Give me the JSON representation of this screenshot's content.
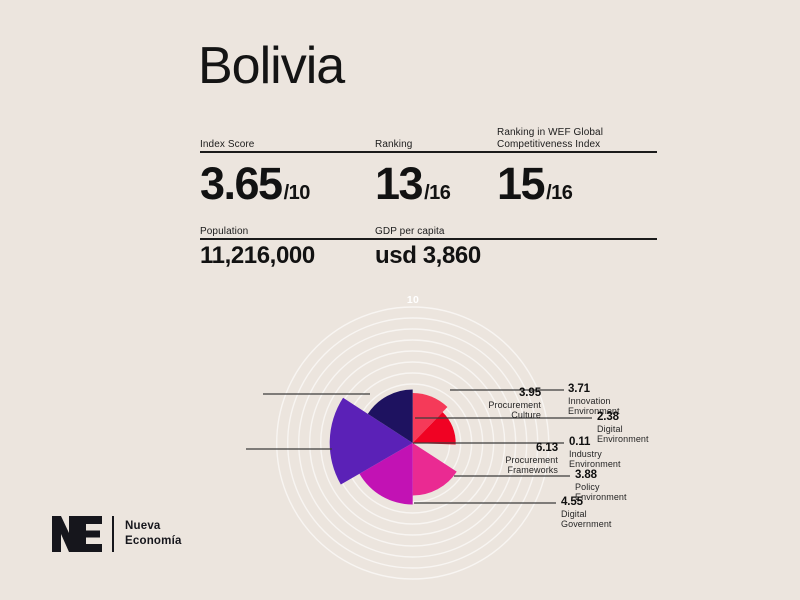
{
  "page": {
    "background": "#ECE5DE",
    "title": "Bolivia"
  },
  "stats": {
    "row1": [
      {
        "label": "Index Score",
        "value": "3.65",
        "suffix": "/10"
      },
      {
        "label": "Ranking",
        "value": "13",
        "suffix": "/16"
      },
      {
        "label": "Ranking in WEF Global Competitiveness Index",
        "value": "15",
        "suffix": "/16"
      }
    ],
    "row2": [
      {
        "label": "Population",
        "value": "11,216,000"
      },
      {
        "label": "GDP per capita",
        "value": "usd 3,860"
      }
    ]
  },
  "chart_data": {
    "type": "polar-area",
    "title": "",
    "scale_max_label": "10",
    "rlim": [
      0,
      10
    ],
    "grid": true,
    "grid_color": "#FFFFFF",
    "leader_line_color": "#3c3c3c",
    "series": [
      {
        "name": "Innovation Environment",
        "label_lines": [
          "Innovation",
          "Environment"
        ],
        "value": 3.71,
        "value_label": "3.71",
        "color": "#F53A59"
      },
      {
        "name": "Digital Environment",
        "label_lines": [
          "Digital",
          "Environment"
        ],
        "value": 2.38,
        "value_label": "2.38",
        "color": "#F00223"
      },
      {
        "name": "Industry Environment",
        "label_lines": [
          "Industry",
          "Environment"
        ],
        "value": 0.11,
        "value_label": "0.11",
        "color": "#F00223"
      },
      {
        "name": "Policy Environment",
        "label_lines": [
          "Policy",
          "Environment"
        ],
        "value": 3.88,
        "value_label": "3.88",
        "color": "#EA2A92"
      },
      {
        "name": "Digital Government",
        "label_lines": [
          "Digital",
          "Government"
        ],
        "value": 4.55,
        "value_label": "4.55",
        "color": "#C212B4"
      },
      {
        "name": "Procurement Frameworks",
        "label_lines": [
          "Procurement",
          "Frameworks"
        ],
        "value": 6.13,
        "value_label": "6.13",
        "color": "#5B21B7"
      },
      {
        "name": "Procurement Culture",
        "label_lines": [
          "Procurement",
          "Culture"
        ],
        "value": 3.95,
        "value_label": "3.95",
        "color": "#1E1260"
      }
    ]
  },
  "logo": {
    "monogram": "NE",
    "name_line1": "Nueva",
    "name_line2": "Economía"
  }
}
